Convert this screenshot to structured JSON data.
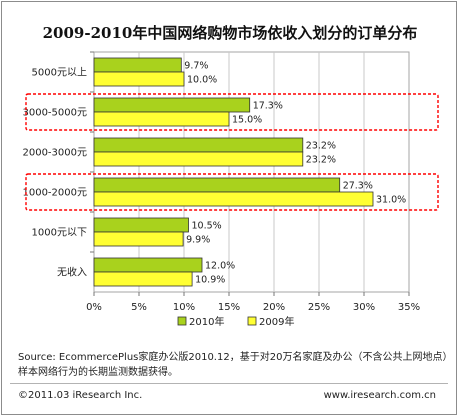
{
  "title": "2009-2010年中国网络购物市场依收入划分的订单分布",
  "footer": {
    "source": "Source: EcommercePlus家庭办公版2010.12，基于对20万名家庭及办公（不含公共上网地点）样本网络行为的长期监测数据获得。",
    "copyright": "©2011.03 iResearch Inc.",
    "website": "www.iresearch.com.cn"
  },
  "chart_data": {
    "type": "bar",
    "orientation": "horizontal",
    "categories": [
      "5000元以上",
      "3000-5000元",
      "2000-3000元",
      "1000-2000元",
      "1000元以下",
      "无收入"
    ],
    "series": [
      {
        "name": "2010年",
        "color": "#a9d21d",
        "values": [
          9.7,
          17.3,
          23.2,
          27.3,
          10.5,
          12.0
        ],
        "labels": [
          "9.7%",
          "17.3%",
          "23.2%",
          "27.3%",
          "10.5%",
          "12.0%"
        ]
      },
      {
        "name": "2009年",
        "color": "#ffff33",
        "values": [
          10.0,
          15.0,
          23.2,
          31.0,
          9.9,
          10.9
        ],
        "labels": [
          "10.0%",
          "15.0%",
          "23.2%",
          "31.0%",
          "9.9%",
          "10.9%"
        ]
      }
    ],
    "xlim": [
      0,
      35
    ],
    "xticks": [
      0,
      5,
      10,
      15,
      20,
      25,
      30,
      35
    ],
    "xtick_labels": [
      "0%",
      "5%",
      "10%",
      "15%",
      "20%",
      "25%",
      "30%",
      "35%"
    ],
    "grid": true,
    "legend_position": "bottom",
    "highlighted_categories": [
      "3000-5000元",
      "1000-2000元"
    ],
    "highlight_color": "#ff0000"
  }
}
